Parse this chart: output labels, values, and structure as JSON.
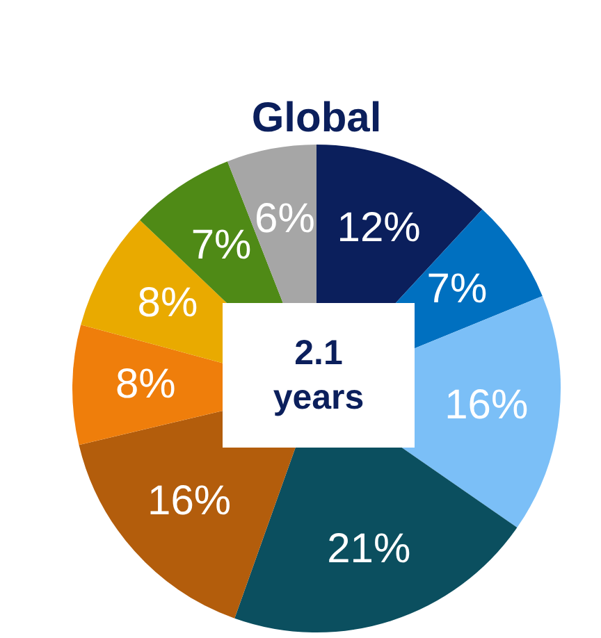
{
  "chart_data": {
    "type": "pie",
    "title": "Global",
    "categories": [
      null,
      null,
      null,
      null,
      null,
      null,
      null,
      null,
      null
    ],
    "values": [
      12,
      7,
      16,
      21,
      16,
      8,
      8,
      7,
      6
    ],
    "colors": [
      "#0b1f5c",
      "#0070c0",
      "#7bbff7",
      "#0b4f5f",
      "#b35d0c",
      "#ef7e0b",
      "#e9aa00",
      "#4f8a16",
      "#a6a6a6"
    ],
    "value_labels": [
      "12%",
      "7%",
      "16%",
      "21%",
      "16%",
      "8%",
      "8%",
      "7%",
      "6%"
    ],
    "annotations": [
      "2.1\nyears"
    ],
    "legend": false
  }
}
